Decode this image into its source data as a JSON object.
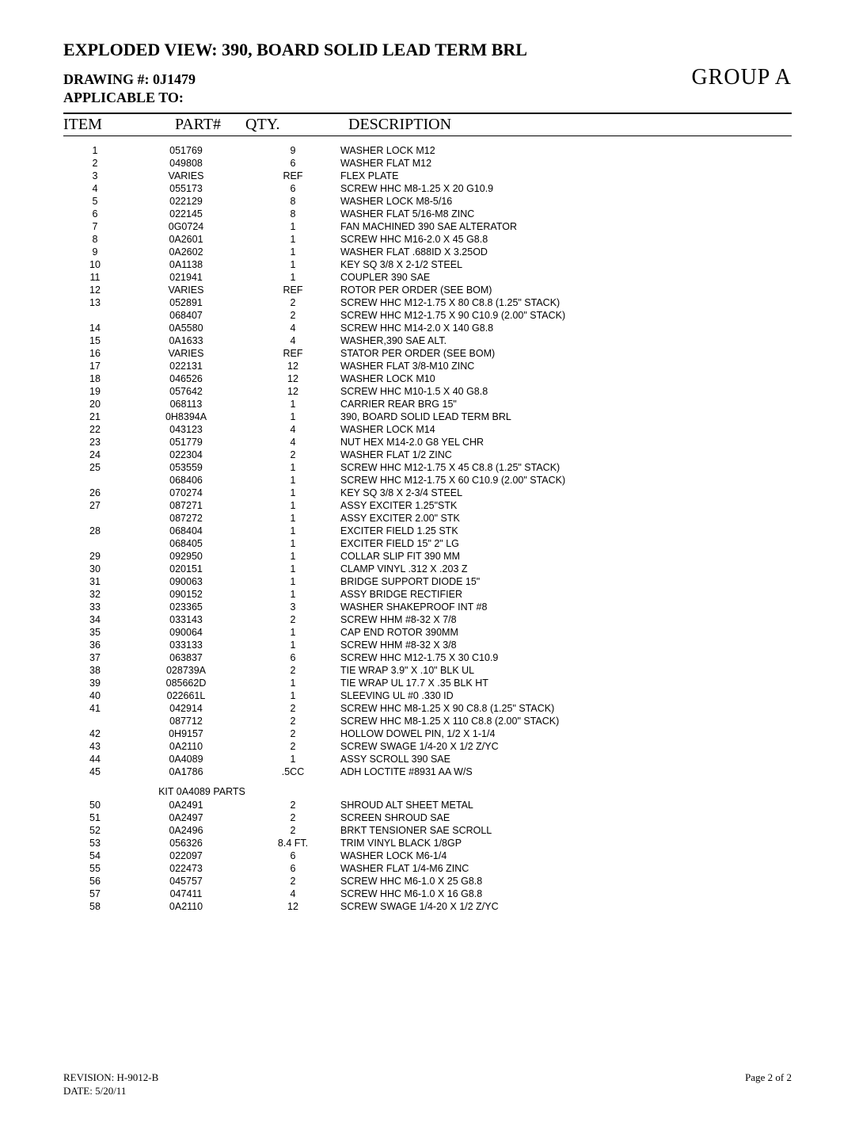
{
  "header": {
    "title": "EXPLODED VIEW: 390, BOARD SOLID LEAD TERM BRL",
    "drawing": "DRAWING #: 0J1479",
    "applicable": "APPLICABLE TO:",
    "group": "GROUP A"
  },
  "columns": {
    "item": "ITEM",
    "part": "PART#",
    "qty": "QTY.",
    "desc": "DESCRIPTION"
  },
  "rows": [
    {
      "item": "1",
      "part": "051769",
      "qty": "9",
      "desc": "WASHER LOCK M12"
    },
    {
      "item": "2",
      "part": "049808",
      "qty": "6",
      "desc": "WASHER FLAT M12"
    },
    {
      "item": "3",
      "part": "VARIES",
      "qty": "REF",
      "desc": "FLEX PLATE"
    },
    {
      "item": "4",
      "part": "055173",
      "qty": "6",
      "desc": "SCREW HHC M8-1.25 X 20 G10.9"
    },
    {
      "item": "5",
      "part": "022129",
      "qty": "8",
      "desc": "WASHER LOCK M8-5/16"
    },
    {
      "item": "6",
      "part": "022145",
      "qty": "8",
      "desc": "WASHER FLAT 5/16-M8 ZINC"
    },
    {
      "item": "7",
      "part": "0G0724",
      "qty": "1",
      "desc": "FAN MACHINED 390 SAE ALTERATOR"
    },
    {
      "item": "8",
      "part": "0A2601",
      "qty": "1",
      "desc": "SCREW HHC M16-2.0 X 45 G8.8"
    },
    {
      "item": "9",
      "part": "0A2602",
      "qty": "1",
      "desc": "WASHER FLAT .688ID X 3.25OD"
    },
    {
      "item": "10",
      "part": "0A1138",
      "qty": "1",
      "desc": "KEY SQ 3/8 X 2-1/2 STEEL"
    },
    {
      "item": "11",
      "part": "021941",
      "qty": "1",
      "desc": "COUPLER 390 SAE"
    },
    {
      "item": "12",
      "part": "VARIES",
      "qty": "REF",
      "desc": "ROTOR PER ORDER (SEE BOM)"
    },
    {
      "item": "13",
      "part": "052891",
      "qty": "2",
      "desc": "SCREW HHC M12-1.75 X 80 C8.8 (1.25\" STACK)"
    },
    {
      "item": "",
      "part": "068407",
      "qty": "2",
      "desc": "SCREW HHC M12-1.75 X 90 C10.9 (2.00\" STACK)"
    },
    {
      "item": "14",
      "part": "0A5580",
      "qty": "4",
      "desc": "SCREW HHC M14-2.0 X 140 G8.8"
    },
    {
      "item": "15",
      "part": "0A1633",
      "qty": "4",
      "desc": "WASHER,390 SAE ALT."
    },
    {
      "item": "16",
      "part": "VARIES",
      "qty": "REF",
      "desc": "STATOR PER ORDER (SEE BOM)"
    },
    {
      "item": "17",
      "part": "022131",
      "qty": "12",
      "desc": "WASHER FLAT 3/8-M10 ZINC"
    },
    {
      "item": "18",
      "part": "046526",
      "qty": "12",
      "desc": "WASHER LOCK M10"
    },
    {
      "item": "19",
      "part": "057642",
      "qty": "12",
      "desc": "SCREW HHC M10-1.5 X 40 G8.8"
    },
    {
      "item": "20",
      "part": "068113",
      "qty": "1",
      "desc": "CARRIER REAR BRG 15\""
    },
    {
      "item": "21",
      "part": "0H8394A",
      "qty": "1",
      "desc": "390, BOARD SOLID LEAD TERM BRL"
    },
    {
      "item": "22",
      "part": "043123",
      "qty": "4",
      "desc": "WASHER LOCK M14"
    },
    {
      "item": "23",
      "part": "051779",
      "qty": "4",
      "desc": "NUT HEX M14-2.0 G8 YEL CHR"
    },
    {
      "item": "24",
      "part": "022304",
      "qty": "2",
      "desc": "WASHER FLAT 1/2 ZINC"
    },
    {
      "item": "25",
      "part": "053559",
      "qty": "1",
      "desc": "SCREW HHC M12-1.75 X 45 C8.8 (1.25\" STACK)"
    },
    {
      "item": "",
      "part": "068406",
      "qty": "1",
      "desc": "SCREW HHC M12-1.75 X 60 C10.9 (2.00\" STACK)"
    },
    {
      "item": "26",
      "part": "070274",
      "qty": "1",
      "desc": "KEY SQ 3/8 X 2-3/4 STEEL"
    },
    {
      "item": "27",
      "part": "087271",
      "qty": "1",
      "desc": "ASSY EXCITER 1.25\"STK"
    },
    {
      "item": "",
      "part": "087272",
      "qty": "1",
      "desc": "ASSY EXCITER 2.00\" STK"
    },
    {
      "item": "28",
      "part": "068404",
      "qty": "1",
      "desc": "EXCITER FIELD 1.25 STK"
    },
    {
      "item": "",
      "part": "068405",
      "qty": "1",
      "desc": "EXCITER FIELD 15\" 2\" LG"
    },
    {
      "item": "29",
      "part": "092950",
      "qty": "1",
      "desc": "COLLAR SLIP FIT 390 MM"
    },
    {
      "item": "30",
      "part": "020151",
      "qty": "1",
      "desc": "CLAMP VINYL .312 X .203 Z"
    },
    {
      "item": "31",
      "part": "090063",
      "qty": "1",
      "desc": "BRIDGE SUPPORT DIODE 15\""
    },
    {
      "item": "32",
      "part": "090152",
      "qty": "1",
      "desc": "ASSY BRIDGE RECTIFIER"
    },
    {
      "item": "33",
      "part": "023365",
      "qty": "3",
      "desc": "WASHER SHAKEPROOF INT #8"
    },
    {
      "item": "34",
      "part": "033143",
      "qty": "2",
      "desc": "SCREW HHM #8-32 X 7/8"
    },
    {
      "item": "35",
      "part": "090064",
      "qty": "1",
      "desc": "CAP END ROTOR 390MM"
    },
    {
      "item": "36",
      "part": "033133",
      "qty": "1",
      "desc": "SCREW HHM #8-32 X 3/8"
    },
    {
      "item": "37",
      "part": "063837",
      "qty": "6",
      "desc": "SCREW HHC M12-1.75 X 30 C10.9"
    },
    {
      "item": "38",
      "part": "028739A",
      "qty": "2",
      "desc": "TIE WRAP 3.9\" X .10\" BLK UL"
    },
    {
      "item": "39",
      "part": "085662D",
      "qty": "1",
      "desc": "TIE WRAP UL 17.7 X .35 BLK HT"
    },
    {
      "item": "40",
      "part": "022661L",
      "qty": "1",
      "desc": "SLEEVING UL #0 .330 ID"
    },
    {
      "item": "41",
      "part": "042914",
      "qty": "2",
      "desc": "SCREW HHC M8-1.25 X 90 C8.8 (1.25\" STACK)"
    },
    {
      "item": "",
      "part": "087712",
      "qty": "2",
      "desc": "SCREW HHC M8-1.25 X 110 C8.8 (2.00\" STACK)"
    },
    {
      "item": "42",
      "part": "0H9157",
      "qty": "2",
      "desc": "HOLLOW DOWEL PIN, 1/2 X 1-1/4"
    },
    {
      "item": "43",
      "part": "0A2110",
      "qty": "2",
      "desc": "SCREW SWAGE 1/4-20 X 1/2 Z/YC"
    },
    {
      "item": "44",
      "part": "0A4089",
      "qty": "1",
      "desc": "ASSY SCROLL 390 SAE"
    },
    {
      "item": "45",
      "part": "0A1786",
      "qty": ".5CC",
      "desc": "ADH LOCTITE #8931 AA W/S"
    }
  ],
  "kit_header": "KIT 0A4089 PARTS",
  "kit_rows": [
    {
      "item": "50",
      "part": "0A2491",
      "qty": "2",
      "desc": "SHROUD ALT SHEET METAL"
    },
    {
      "item": "51",
      "part": "0A2497",
      "qty": "2",
      "desc": "SCREEN SHROUD SAE"
    },
    {
      "item": "52",
      "part": "0A2496",
      "qty": "2",
      "desc": "BRKT TENSIONER SAE SCROLL"
    },
    {
      "item": "53",
      "part": "056326",
      "qty": "8.4 FT.",
      "desc": "TRIM VINYL BLACK 1/8GP"
    },
    {
      "item": "54",
      "part": "022097",
      "qty": "6",
      "desc": "WASHER LOCK M6-1/4"
    },
    {
      "item": "55",
      "part": "022473",
      "qty": "6",
      "desc": "WASHER FLAT 1/4-M6 ZINC"
    },
    {
      "item": "56",
      "part": "045757",
      "qty": "2",
      "desc": "SCREW HHC M6-1.0 X 25 G8.8"
    },
    {
      "item": "57",
      "part": "047411",
      "qty": "4",
      "desc": "SCREW HHC M6-1.0 X 16 G8.8"
    },
    {
      "item": "58",
      "part": "0A2110",
      "qty": "12",
      "desc": "SCREW SWAGE 1/4-20 X 1/2 Z/YC"
    }
  ],
  "footer": {
    "revision": "REVISION: H-9012-B",
    "date": "DATE: 5/20/11",
    "page": "Page 2 of 2"
  }
}
